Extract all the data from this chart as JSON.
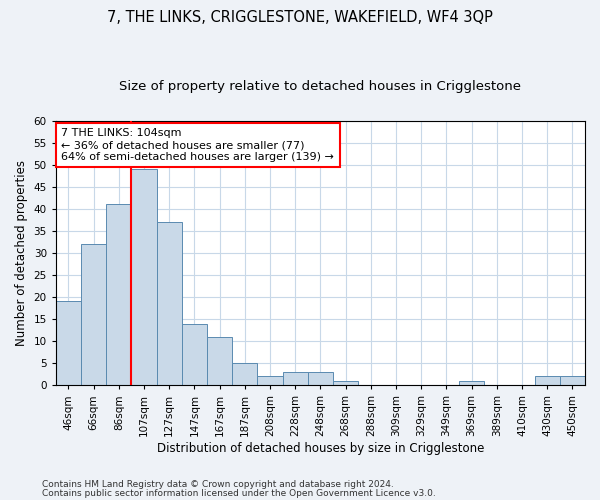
{
  "title": "7, THE LINKS, CRIGGLESTONE, WAKEFIELD, WF4 3QP",
  "subtitle": "Size of property relative to detached houses in Crigglestone",
  "xlabel": "Distribution of detached houses by size in Crigglestone",
  "ylabel": "Number of detached properties",
  "categories": [
    "46sqm",
    "66sqm",
    "86sqm",
    "107sqm",
    "127sqm",
    "147sqm",
    "167sqm",
    "187sqm",
    "208sqm",
    "228sqm",
    "248sqm",
    "268sqm",
    "288sqm",
    "309sqm",
    "329sqm",
    "349sqm",
    "369sqm",
    "389sqm",
    "410sqm",
    "430sqm",
    "450sqm"
  ],
  "values": [
    19,
    32,
    41,
    49,
    37,
    14,
    11,
    5,
    2,
    3,
    3,
    1,
    0,
    0,
    0,
    0,
    1,
    0,
    0,
    2,
    2
  ],
  "bar_color": "#c9d9e8",
  "bar_edge_color": "#5a8ab0",
  "vline_index": 3,
  "vline_color": "red",
  "annotation_line1": "7 THE LINKS: 104sqm",
  "annotation_line2": "← 36% of detached houses are smaller (77)",
  "annotation_line3": "64% of semi-detached houses are larger (139) →",
  "annotation_box_color": "white",
  "annotation_box_edge_color": "red",
  "ylim": [
    0,
    60
  ],
  "yticks": [
    0,
    5,
    10,
    15,
    20,
    25,
    30,
    35,
    40,
    45,
    50,
    55,
    60
  ],
  "footer1": "Contains HM Land Registry data © Crown copyright and database right 2024.",
  "footer2": "Contains public sector information licensed under the Open Government Licence v3.0.",
  "background_color": "#eef2f7",
  "plot_background_color": "#ffffff",
  "grid_color": "#c8d8e8",
  "title_fontsize": 10.5,
  "subtitle_fontsize": 9.5,
  "axis_label_fontsize": 8.5,
  "tick_fontsize": 7.5,
  "annotation_fontsize": 8,
  "footer_fontsize": 6.5
}
